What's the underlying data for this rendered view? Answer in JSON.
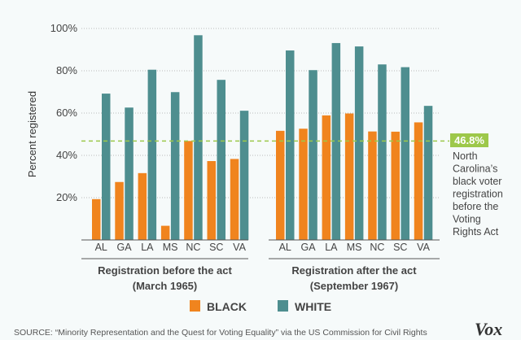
{
  "chart_data": {
    "type": "bar",
    "ylabel": "Percent registered",
    "ylim": [
      0,
      100
    ],
    "yticks": [
      "20%",
      "40%",
      "60%",
      "80%",
      "100%"
    ],
    "grid": true,
    "groups": [
      {
        "label_line1": "Registration before the act",
        "label_line2": "(March 1965)",
        "categories": [
          "AL",
          "GA",
          "LA",
          "MS",
          "NC",
          "SC",
          "VA"
        ],
        "series": [
          {
            "name": "BLACK",
            "values": [
              19.3,
              27.4,
              31.6,
              6.7,
              46.8,
              37.3,
              38.3
            ]
          },
          {
            "name": "WHITE",
            "values": [
              69.2,
              62.6,
              80.5,
              69.9,
              96.8,
              75.7,
              61.1
            ]
          }
        ]
      },
      {
        "label_line1": "Registration after the act",
        "label_line2": "(September 1967)",
        "categories": [
          "AL",
          "GA",
          "LA",
          "MS",
          "NC",
          "SC",
          "VA"
        ],
        "series": [
          {
            "name": "BLACK",
            "values": [
              51.6,
              52.6,
              58.9,
              59.8,
              51.3,
              51.2,
              55.6
            ]
          },
          {
            "name": "WHITE",
            "values": [
              89.6,
              80.3,
              93.1,
              91.5,
              83.0,
              81.7,
              63.4
            ]
          }
        ]
      }
    ],
    "legend": {
      "placement": "bottom",
      "items": [
        "BLACK",
        "WHITE"
      ]
    },
    "colors": {
      "BLACK": "#f0841e",
      "WHITE": "#4e8e8f",
      "reference": "#9dc84a"
    },
    "reference_line": {
      "value": 46.8,
      "label": "46.8%",
      "annotation": [
        "North",
        "Carolina’s",
        "black voter",
        "registration",
        "before the",
        "Voting",
        "Rights Act"
      ]
    }
  },
  "source": "SOURCE: “Minority Representation and the Quest for Voting Equality” via the US Commission for Civil Rights",
  "logo": "Vox"
}
